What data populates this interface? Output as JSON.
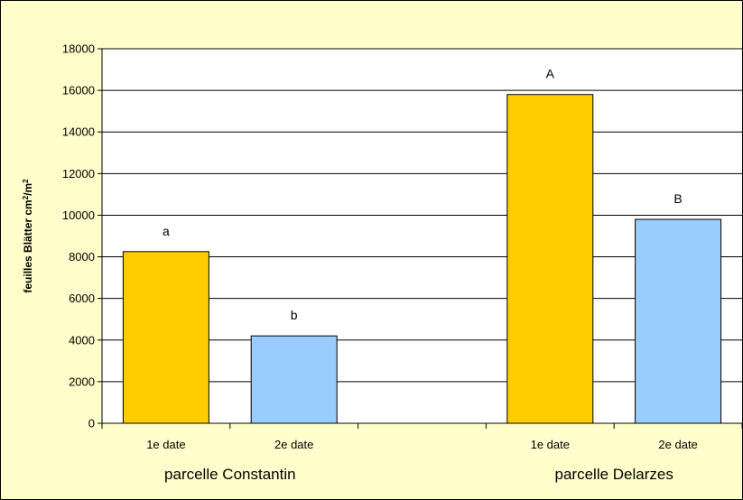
{
  "chart_data": {
    "type": "bar",
    "ylabel": "feuilles Blätter cm²/m²",
    "ylabel_parts": {
      "main": "feuilles Blätter cm",
      "sup1": "2",
      "mid": "/m",
      "sup2": "2"
    },
    "ylim": [
      0,
      18000
    ],
    "yticks": [
      0,
      2000,
      4000,
      6000,
      8000,
      10000,
      12000,
      14000,
      16000,
      18000
    ],
    "grid": true,
    "legend": "none",
    "groups": [
      {
        "label": "parcelle Constantin",
        "bars": [
          {
            "category": "1e date",
            "value": 8250,
            "label": "a",
            "color": "#FFCC00"
          },
          {
            "category": "2e date",
            "value": 4200,
            "label": "b",
            "color": "#99CCFF"
          }
        ]
      },
      {
        "label": "parcelle Delarzes",
        "bars": [
          {
            "category": "1e date",
            "value": 15800,
            "label": "A",
            "color": "#FFCC00"
          },
          {
            "category": "2e date",
            "value": 9800,
            "label": "B",
            "color": "#99CCFF"
          }
        ]
      }
    ]
  },
  "colors": {
    "chart_background": "#FFFFCC",
    "plot_background": "#FFFFFF",
    "frame": "#000000",
    "gridline": "#000000"
  }
}
